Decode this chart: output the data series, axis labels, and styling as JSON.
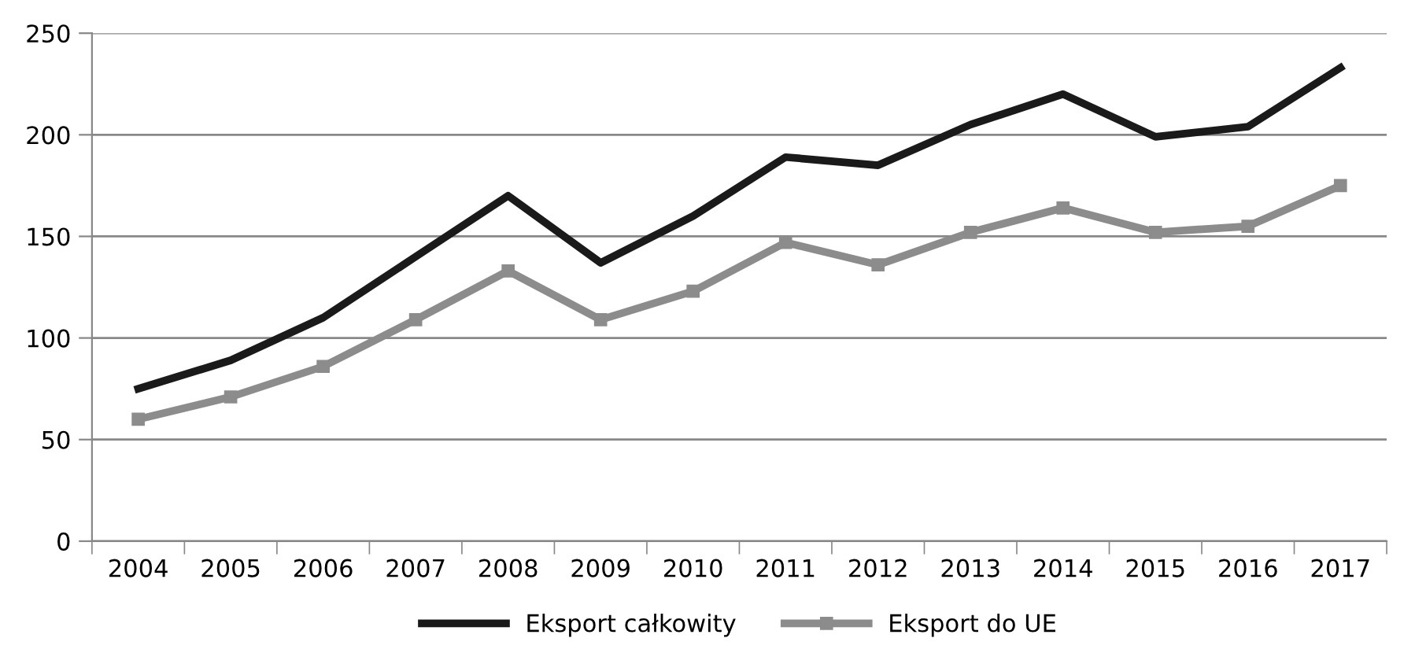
{
  "chart_data": {
    "type": "line",
    "categories": [
      "2004",
      "2005",
      "2006",
      "2007",
      "2008",
      "2009",
      "2010",
      "2011",
      "2012",
      "2013",
      "2014",
      "2015",
      "2016",
      "2017"
    ],
    "series": [
      {
        "name": "Eksport całkowity",
        "color": "#1a1a1a",
        "marker": "none",
        "values": [
          75,
          89,
          110,
          140,
          170,
          137,
          160,
          189,
          185,
          205,
          220,
          199,
          204,
          233
        ]
      },
      {
        "name": "Eksport do UE",
        "color": "#8c8c8c",
        "marker": "square",
        "values": [
          60,
          71,
          86,
          109,
          133,
          109,
          123,
          147,
          136,
          152,
          164,
          152,
          155,
          175
        ]
      }
    ],
    "ylim": [
      0,
      250
    ],
    "yticks": [
      0,
      50,
      100,
      150,
      200,
      250
    ],
    "grid": "y",
    "legend": "bottom"
  }
}
